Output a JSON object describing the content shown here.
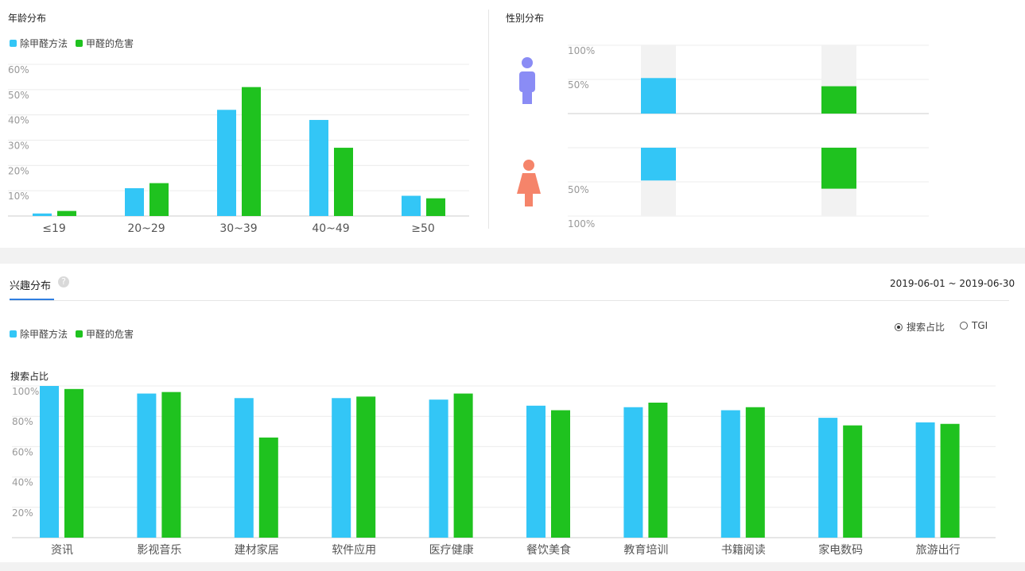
{
  "colors": {
    "series1": "#33c6f6",
    "series2": "#1fc21f",
    "male": "#8a8cf5",
    "female": "#f5846a",
    "accent": "#2f7ee0"
  },
  "age": {
    "title": "年龄分布"
  },
  "gender": {
    "title": "性别分布"
  },
  "interest": {
    "title": "兴趣分布",
    "help": "?",
    "date_range": "2019-06-01 ~ 2019-06-30",
    "y_title": "搜索占比",
    "radio": [
      {
        "label": "搜索占比",
        "selected": true
      },
      {
        "label": "TGI",
        "selected": false
      }
    ]
  },
  "legend": [
    "除甲醛方法",
    "甲醛的危害"
  ],
  "chart_data": [
    {
      "id": "age",
      "type": "bar",
      "title": "年龄分布",
      "categories": [
        "≤19",
        "20~29",
        "30~39",
        "40~49",
        "≥50"
      ],
      "series": [
        {
          "name": "除甲醛方法",
          "values": [
            1,
            11,
            42,
            38,
            8
          ]
        },
        {
          "name": "甲醛的危害",
          "values": [
            2,
            13,
            51,
            27,
            7
          ]
        }
      ],
      "ylim": [
        0,
        60
      ],
      "yticks": [
        "60%",
        "50%",
        "40%",
        "30%",
        "20%",
        "10%"
      ],
      "ytick_values": [
        60,
        50,
        40,
        30,
        20,
        10
      ]
    },
    {
      "id": "gender",
      "type": "bar",
      "title": "性别分布",
      "categories": [
        "男",
        "女"
      ],
      "series": [
        {
          "name": "除甲醛方法",
          "values": [
            52,
            48
          ]
        },
        {
          "name": "甲醛的危害",
          "values": [
            40,
            60
          ]
        }
      ],
      "yticks_top": [
        "100%",
        "50%"
      ],
      "yticks_bottom": [
        "50%",
        "100%"
      ]
    },
    {
      "id": "interest",
      "type": "bar",
      "title": "兴趣分布",
      "categories": [
        "资讯",
        "影视音乐",
        "建材家居",
        "软件应用",
        "医疗健康",
        "餐饮美食",
        "教育培训",
        "书籍阅读",
        "家电数码",
        "旅游出行"
      ],
      "series": [
        {
          "name": "除甲醛方法",
          "values": [
            100,
            95,
            92,
            92,
            91,
            87,
            86,
            84,
            79,
            76
          ]
        },
        {
          "name": "甲醛的危害",
          "values": [
            98,
            96,
            66,
            93,
            95,
            84,
            89,
            86,
            74,
            75
          ]
        }
      ],
      "ylim": [
        0,
        100
      ],
      "yticks": [
        "100%",
        "80%",
        "60%",
        "40%",
        "20%"
      ],
      "ytick_values": [
        100,
        80,
        60,
        40,
        20
      ]
    }
  ]
}
